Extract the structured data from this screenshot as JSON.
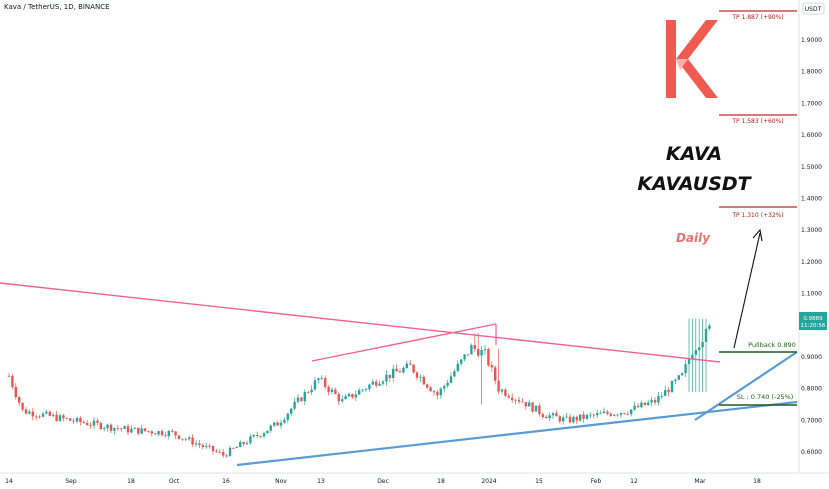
{
  "header": {
    "symbol_line": "Kava / TetherUS, 1D, BINANCE"
  },
  "price_axis": {
    "currency_label": "USDT"
  },
  "title": {
    "line1": "KAVA",
    "line2": "KAVAUSDT"
  },
  "timeframe": "Daily",
  "levels": {
    "tp3": "TP 1.887 (+90%)",
    "tp2": "TP 1.583 (+60%)",
    "tp1": "TP 1.310 (+32%)",
    "pullback": "Pullback 0.890",
    "sl": "SL : 0.740 (-25%)"
  },
  "current_price": {
    "price": "0.9889",
    "countdown": "11:20:56"
  },
  "colors": {
    "up": "#26a69a",
    "down": "#ef5350",
    "trendline": "#f06292",
    "support": "#5b9bd5",
    "target": "#c62828",
    "level": "#1b5e20"
  },
  "chart_data": {
    "type": "candlestick",
    "title": "KAVA KAVAUSDT",
    "ylim": [
      0.55,
      2.0
    ],
    "y_ticks": [
      "1.9000",
      "1.8000",
      "1.7000",
      "1.6000",
      "1.5000",
      "1.4000",
      "1.3000",
      "1.2000",
      "1.1000",
      "1.0000",
      "0.9000",
      "0.8000",
      "0.7000",
      "0.6000"
    ],
    "x_ticks": [
      "14",
      "Sep",
      "18",
      "Oct",
      "16",
      "Nov",
      "13",
      "Dec",
      "18",
      "2024",
      "15",
      "Feb",
      "12",
      "Mar",
      "18"
    ],
    "price_path": [
      [
        "2023-08-14",
        0.84
      ],
      [
        "2023-08-18",
        0.73
      ],
      [
        "2023-09-01",
        0.7
      ],
      [
        "2023-09-18",
        0.67
      ],
      [
        "2023-10-01",
        0.66
      ],
      [
        "2023-10-16",
        0.59
      ],
      [
        "2023-11-01",
        0.69
      ],
      [
        "2023-11-13",
        0.83
      ],
      [
        "2023-11-20",
        0.76
      ],
      [
        "2023-12-01",
        0.83
      ],
      [
        "2023-12-10",
        0.87
      ],
      [
        "2023-12-18",
        0.78
      ],
      [
        "2023-12-28",
        0.93
      ],
      [
        "2024-01-01",
        0.91
      ],
      [
        "2024-01-05",
        0.8
      ],
      [
        "2024-01-12",
        0.76
      ],
      [
        "2024-01-18",
        0.72
      ],
      [
        "2024-01-25",
        0.7
      ],
      [
        "2024-02-05",
        0.72
      ],
      [
        "2024-02-12",
        0.73
      ],
      [
        "2024-02-20",
        0.76
      ],
      [
        "2024-02-28",
        0.84
      ],
      [
        "2024-03-02",
        0.92
      ],
      [
        "2024-03-05",
        0.96
      ],
      [
        "2024-03-07",
        0.99
      ]
    ],
    "annotations": {
      "tp_levels": [
        1.887,
        1.583,
        1.31
      ],
      "pullback": 0.89,
      "stop_loss": 0.74,
      "last_price": 0.9889
    }
  }
}
